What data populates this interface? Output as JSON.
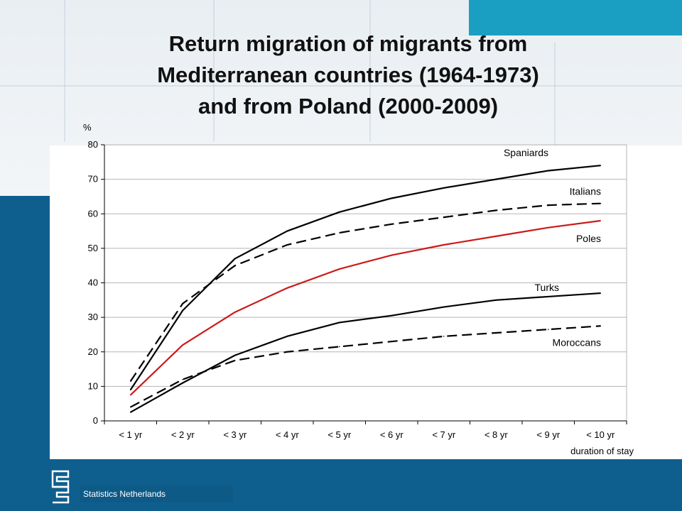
{
  "title_lines": [
    "Return migration of migrants from",
    "Mediterranean countries (1964-1973)",
    "and from Poland (2000-2009)"
  ],
  "footer": {
    "organization": "Statistics Netherlands"
  },
  "colors": {
    "left_bar": "#0f5f8e",
    "corner": "#1a9fc3",
    "poles_line": "#cc1a1a"
  },
  "chart_data": {
    "type": "line",
    "ylabel": "%",
    "xlabel": "duration of stay",
    "ylim": [
      0,
      80
    ],
    "yticks": [
      0,
      10,
      20,
      30,
      40,
      50,
      60,
      70,
      80
    ],
    "categories": [
      "< 1 yr",
      "< 2 yr",
      "< 3 yr",
      "< 4 yr",
      "< 5 yr",
      "< 6 yr",
      "< 7 yr",
      "< 8 yr",
      "< 9 yr",
      "< 10 yr"
    ],
    "grid": "horizontal",
    "series": [
      {
        "name": "Spaniards",
        "style": "solid",
        "color": "#000000",
        "values": [
          9,
          32,
          47,
          55,
          60.5,
          64.5,
          67.5,
          70,
          72.5,
          74
        ]
      },
      {
        "name": "Italians",
        "style": "dashed",
        "color": "#000000",
        "values": [
          11.5,
          34,
          45,
          51,
          54.5,
          57,
          59,
          61,
          62.5,
          63
        ]
      },
      {
        "name": "Poles",
        "style": "solid",
        "color": "#cc1a1a",
        "values": [
          7.5,
          22,
          31.5,
          38.5,
          44,
          48,
          51,
          53.5,
          56,
          58
        ]
      },
      {
        "name": "Turks",
        "style": "solid",
        "color": "#000000",
        "values": [
          2.5,
          11,
          19,
          24.5,
          28.5,
          30.5,
          33,
          35,
          36,
          37
        ]
      },
      {
        "name": "Moroccans",
        "style": "dashed",
        "color": "#000000",
        "values": [
          4,
          12,
          17.5,
          20,
          21.5,
          23,
          24.5,
          25.5,
          26.5,
          27.5
        ]
      }
    ]
  }
}
